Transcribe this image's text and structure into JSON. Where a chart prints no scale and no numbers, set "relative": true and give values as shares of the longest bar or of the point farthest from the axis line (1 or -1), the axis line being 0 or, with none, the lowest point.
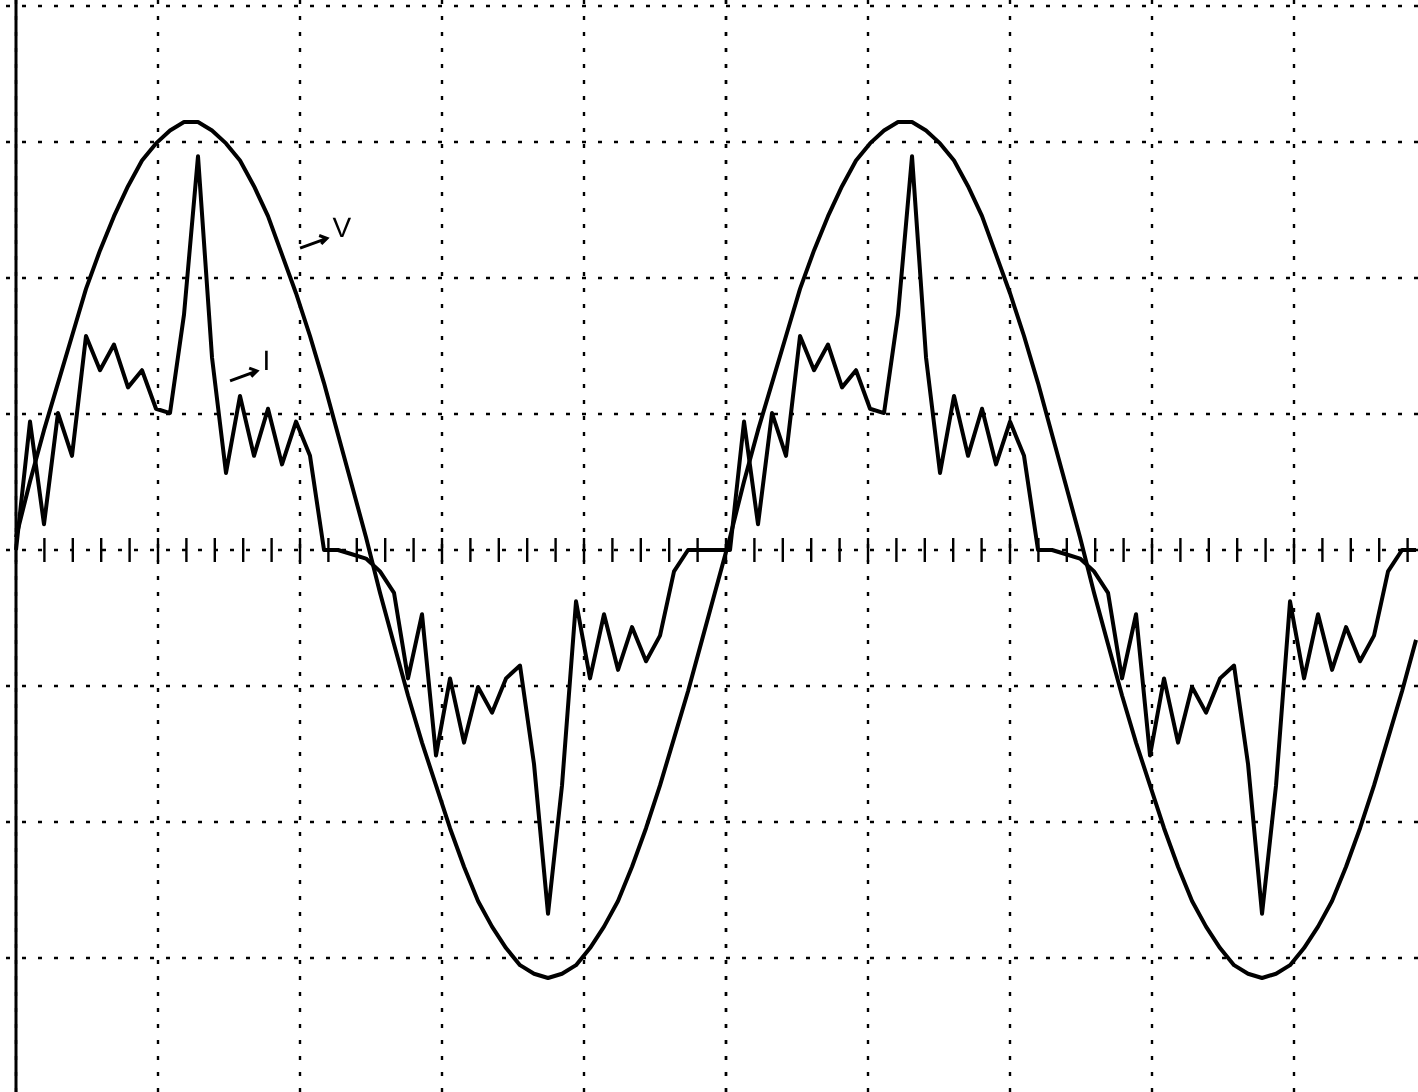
{
  "chart_data": {
    "type": "line",
    "relative": true,
    "grid": true,
    "legend": "top left",
    "line_style": "solid",
    "marker": "none",
    "categories": [
      null,
      null,
      null,
      null,
      null,
      null,
      null,
      null,
      null,
      null,
      null,
      null,
      null,
      null,
      null,
      null,
      null,
      null,
      null,
      null,
      null,
      null,
      null,
      null,
      null,
      null,
      null,
      null,
      null,
      null,
      null,
      null,
      null,
      null,
      null,
      null,
      null,
      null,
      null,
      null,
      null,
      null,
      null,
      null,
      null,
      null,
      null,
      null,
      null,
      null,
      null,
      null,
      null,
      null,
      null,
      null,
      null,
      null,
      null,
      null,
      null,
      null,
      null,
      null,
      null,
      null,
      null,
      null,
      null,
      null,
      null,
      null,
      null,
      null,
      null,
      null,
      null,
      null,
      null,
      null,
      null,
      null,
      null,
      null,
      null,
      null,
      null,
      null,
      null,
      null,
      null,
      null,
      null,
      null,
      null,
      null,
      null,
      null,
      null,
      null,
      null
    ],
    "series": [
      {
        "name": "V",
        "color": "#000000",
        "values": [
          0.03,
          0.16,
          0.28,
          0.39,
          0.5,
          0.61,
          0.7,
          0.78,
          0.85,
          0.91,
          0.95,
          0.98,
          1.0,
          1.0,
          0.98,
          0.95,
          0.91,
          0.85,
          0.78,
          0.69,
          0.6,
          0.5,
          0.39,
          0.27,
          0.15,
          0.03,
          -0.1,
          -0.22,
          -0.34,
          -0.45,
          -0.55,
          -0.65,
          -0.74,
          -0.82,
          -0.88,
          -0.93,
          -0.97,
          -0.99,
          -1.0,
          -0.99,
          -0.97,
          -0.93,
          -0.88,
          -0.82,
          -0.74,
          -0.65,
          -0.55,
          -0.44,
          -0.33,
          -0.21,
          -0.09,
          0.03,
          0.16,
          0.28,
          0.39,
          0.5,
          0.61,
          0.7,
          0.78,
          0.85,
          0.91,
          0.95,
          0.98,
          1.0,
          1.0,
          0.98,
          0.95,
          0.91,
          0.85,
          0.78,
          0.69,
          0.6,
          0.5,
          0.39,
          0.27,
          0.15,
          0.03,
          -0.1,
          -0.22,
          -0.34,
          -0.45,
          -0.55,
          -0.65,
          -0.74,
          -0.82,
          -0.88,
          -0.93,
          -0.97,
          -0.99,
          -1.0,
          -0.99,
          -0.97,
          -0.93,
          -0.88,
          -0.82,
          -0.74,
          -0.65,
          -0.55,
          -0.44,
          -0.33,
          -0.21
        ]
      },
      {
        "name": "I",
        "color": "#000000",
        "values": [
          0.0,
          0.3,
          0.06,
          0.32,
          0.22,
          0.5,
          0.42,
          0.48,
          0.38,
          0.42,
          0.33,
          0.32,
          0.55,
          0.92,
          0.45,
          0.18,
          0.36,
          0.22,
          0.33,
          0.2,
          0.3,
          0.22,
          0.0,
          0.0,
          -0.01,
          -0.02,
          -0.05,
          -0.1,
          -0.3,
          -0.15,
          -0.48,
          -0.3,
          -0.45,
          -0.32,
          -0.38,
          -0.3,
          -0.27,
          -0.5,
          -0.85,
          -0.55,
          -0.12,
          -0.3,
          -0.15,
          -0.28,
          -0.18,
          -0.26,
          -0.2,
          -0.05,
          0.0,
          0.0,
          0.0,
          0.0,
          0.3,
          0.06,
          0.32,
          0.22,
          0.5,
          0.42,
          0.48,
          0.38,
          0.42,
          0.33,
          0.32,
          0.55,
          0.92,
          0.45,
          0.18,
          0.36,
          0.22,
          0.33,
          0.2,
          0.3,
          0.22,
          0.0,
          0.0,
          -0.01,
          -0.02,
          -0.05,
          -0.1,
          -0.3,
          -0.15,
          -0.48,
          -0.3,
          -0.45,
          -0.32,
          -0.38,
          -0.3,
          -0.27,
          -0.5,
          -0.85,
          -0.55,
          -0.12,
          -0.3,
          -0.15,
          -0.28,
          -0.18,
          -0.26,
          -0.2,
          -0.05,
          0.0,
          0.0
        ]
      }
    ]
  }
}
